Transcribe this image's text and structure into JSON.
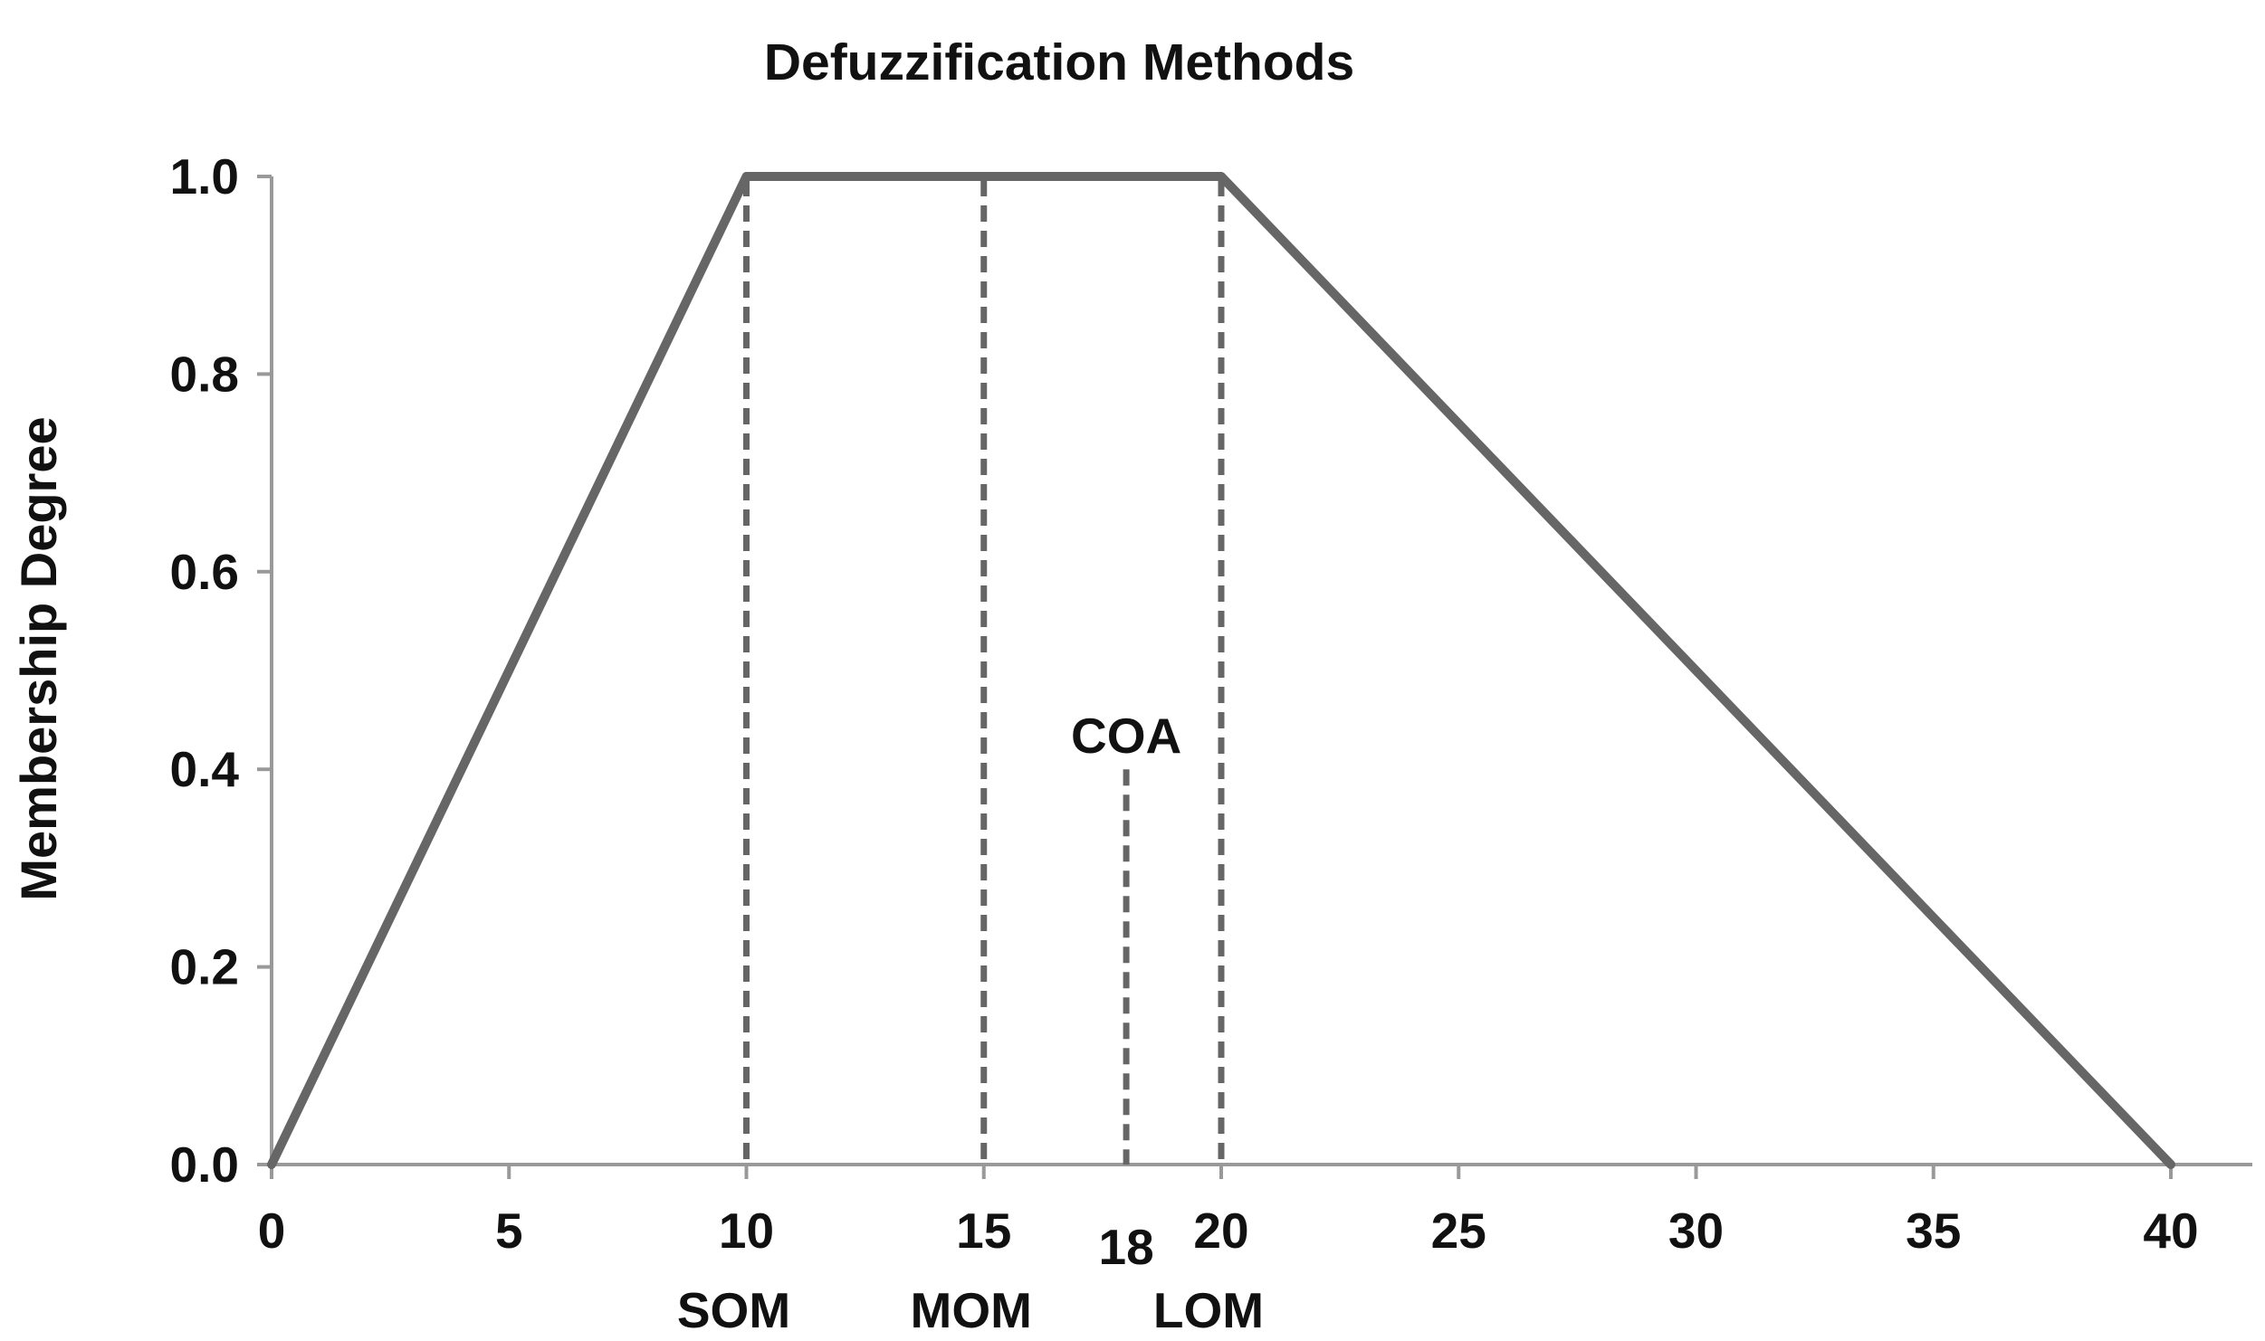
{
  "chart_data": {
    "type": "line",
    "title": "Defuzzification Methods",
    "xlabel": "",
    "ylabel": "Membership Degree",
    "xlim": [
      0,
      40
    ],
    "ylim": [
      0,
      1
    ],
    "x_ticks": [
      0,
      5,
      10,
      15,
      20,
      25,
      30,
      35,
      40
    ],
    "y_ticks": [
      "0.0",
      "0.2",
      "0.4",
      "0.6",
      "0.8",
      "1.0"
    ],
    "grid": false,
    "legend": "none",
    "series": [
      {
        "points": [
          {
            "x": 0,
            "y": 0
          },
          {
            "x": 10,
            "y": 1
          },
          {
            "x": 20,
            "y": 1
          },
          {
            "x": 40,
            "y": 0
          }
        ]
      }
    ],
    "markers": [
      {
        "name": "SOM",
        "x": 10,
        "y_top": 1.0,
        "style": "dashed"
      },
      {
        "name": "MOM",
        "x": 15,
        "y_top": 1.0,
        "style": "dashed"
      },
      {
        "name": "LOM",
        "x": 20,
        "y_top": 1.0,
        "style": "dashed"
      },
      {
        "name": "COA",
        "x": 18,
        "y_top": 0.4,
        "style": "dashed",
        "value_label": "18"
      }
    ],
    "colors": {
      "line": "#666666",
      "axis": "#999999",
      "marker": "#666666",
      "text": "#111111"
    }
  }
}
